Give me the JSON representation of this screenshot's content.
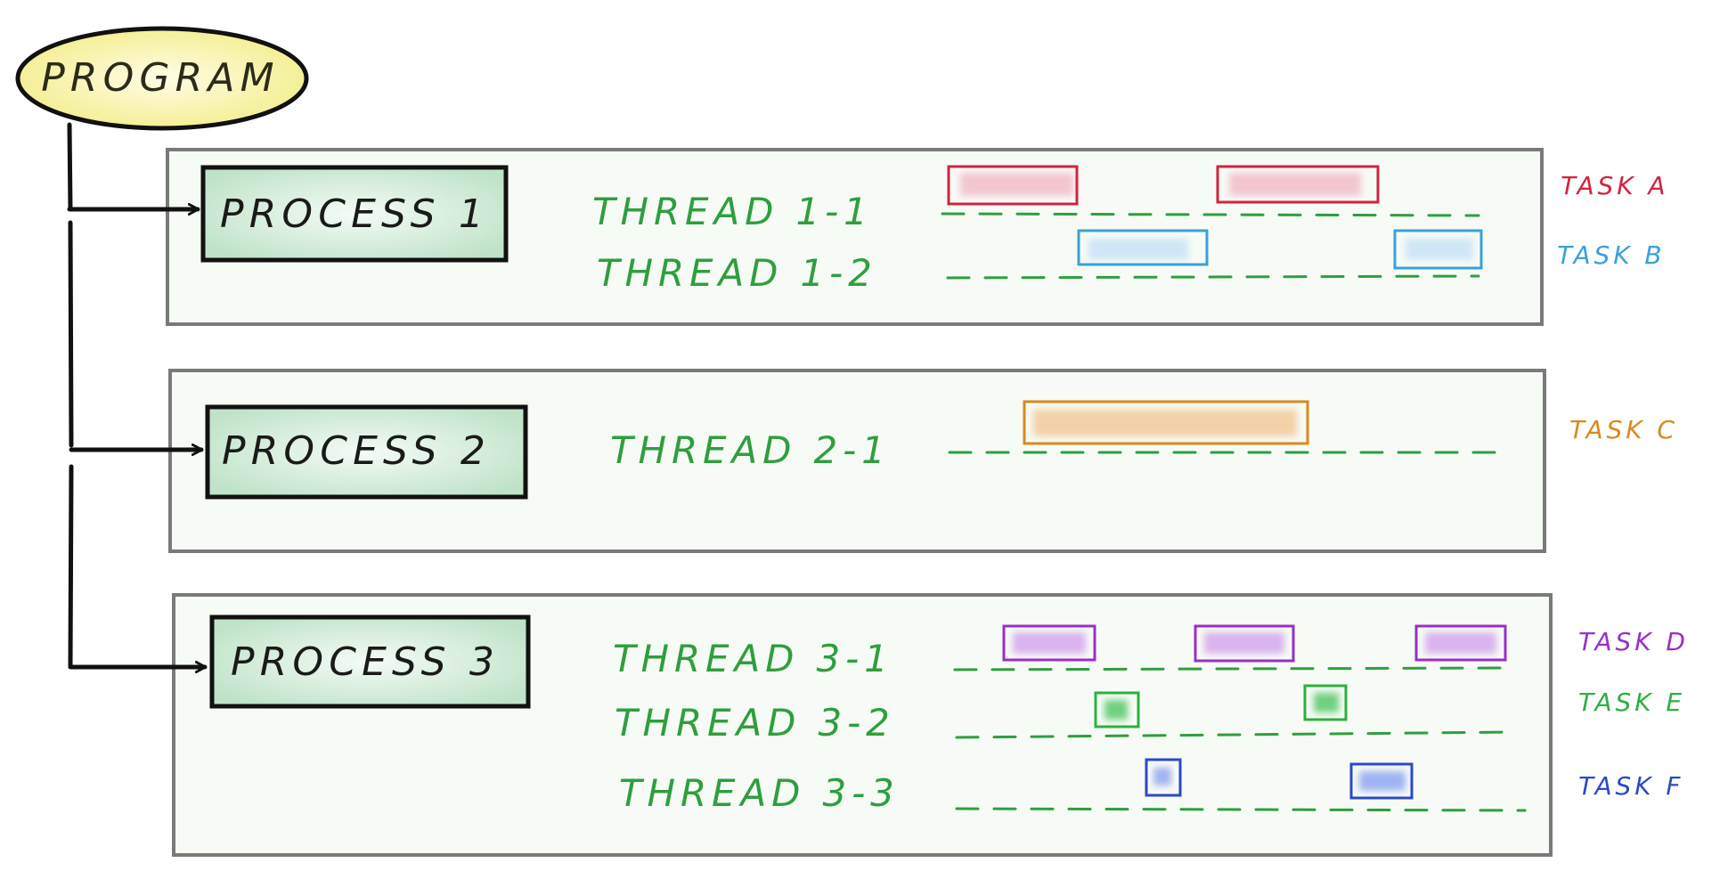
{
  "program": {
    "label": "Program"
  },
  "processes": [
    {
      "label": "Process 1",
      "threads": [
        {
          "label": "Thread 1-1"
        },
        {
          "label": "Thread 1-2"
        }
      ]
    },
    {
      "label": "Process 2",
      "threads": [
        {
          "label": "Thread 2-1"
        }
      ]
    },
    {
      "label": "Process 3",
      "threads": [
        {
          "label": "Thread 3-1"
        },
        {
          "label": "Thread 3-2"
        },
        {
          "label": "Thread 3-3"
        }
      ]
    }
  ],
  "tasks": [
    {
      "label": "Task A",
      "color": "#d0243f",
      "fill": "#f3c6cf",
      "process": 0,
      "thread": 0
    },
    {
      "label": "Task B",
      "color": "#3aa0dc",
      "fill": "#cfe6f6",
      "process": 0,
      "thread": 1
    },
    {
      "label": "Task C",
      "color": "#d98a1e",
      "fill": "#f2d1a6",
      "process": 1,
      "thread": 0
    },
    {
      "label": "Task D",
      "color": "#9a2fc8",
      "fill": "#d9b3ee",
      "process": 2,
      "thread": 0
    },
    {
      "label": "Task E",
      "color": "#2cb040",
      "fill": "#6ed07e",
      "process": 2,
      "thread": 1
    },
    {
      "label": "Task F",
      "color": "#2a49c9",
      "fill": "#9fb4f2",
      "process": 2,
      "thread": 2
    }
  ],
  "colors": {
    "program_fill": "#fbf7b0",
    "process_fill": "#d6efdc",
    "panel_fill": "#f7fbf5",
    "panel_border": "#7a7a7a",
    "thread_text": "#2f9e3f"
  }
}
